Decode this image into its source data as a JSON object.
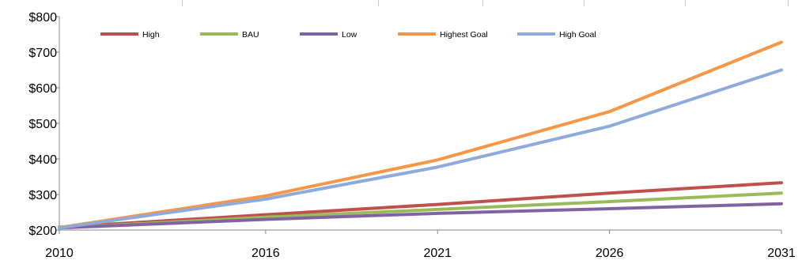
{
  "chart_data": {
    "type": "line",
    "title": "",
    "xlabel": "",
    "ylabel": "",
    "x": [
      2010,
      2016,
      2021,
      2026,
      2031
    ],
    "x_tick_labels": [
      "2010",
      "2016",
      "2021",
      "2026",
      "2031"
    ],
    "y_tick_labels": [
      "$200",
      "$300",
      "$400",
      "$500",
      "$600",
      "$700",
      "$800"
    ],
    "y_ticks": [
      200,
      300,
      400,
      500,
      600,
      700,
      800
    ],
    "ylim": [
      200,
      800
    ],
    "grid": false,
    "legend_position": "top-left",
    "series": [
      {
        "name": "High",
        "color": "#c0504d",
        "values": [
          208,
          243,
          272,
          304,
          333
        ]
      },
      {
        "name": "BAU",
        "color": "#9bbb59",
        "values": [
          206,
          236,
          258,
          280,
          304
        ]
      },
      {
        "name": "Low",
        "color": "#8064a2",
        "values": [
          206,
          230,
          247,
          260,
          274
        ]
      },
      {
        "name": "Highest Goal",
        "color": "#f79646",
        "values": [
          207,
          296,
          397,
          533,
          728
        ]
      },
      {
        "name": "High Goal",
        "color": "#8eaadb",
        "values": [
          206,
          287,
          377,
          492,
          650
        ]
      }
    ]
  }
}
